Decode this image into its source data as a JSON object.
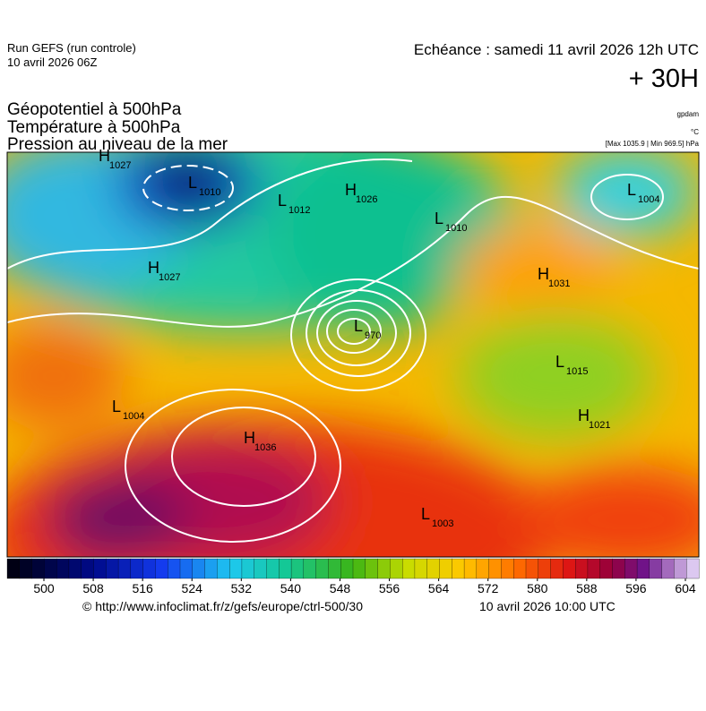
{
  "header": {
    "run": "Run GEFS (run controle)",
    "run_date": "10 avril 2026 06Z",
    "validity": "Echéance : samedi 11 avril 2026 12h UTC",
    "lead": "+ 30H",
    "titles": [
      "Géopotentiel à 500hPa",
      "Température à 500hPa",
      "Pression au niveau de la mer"
    ],
    "units": [
      "gpdam",
      "°C",
      "[Max 1035.9 | Min 969.5] hPa"
    ]
  },
  "centers": [
    {
      "kind": "H",
      "value": "1027"
    },
    {
      "kind": "L",
      "value": "1010"
    },
    {
      "kind": "L",
      "value": "1012"
    },
    {
      "kind": "H",
      "value": "1026"
    },
    {
      "kind": "L",
      "value": "1010"
    },
    {
      "kind": "L",
      "value": "1004"
    },
    {
      "kind": "H",
      "value": "1027"
    },
    {
      "kind": "H",
      "value": "1031"
    },
    {
      "kind": "L",
      "value": "970"
    },
    {
      "kind": "L",
      "value": "1015"
    },
    {
      "kind": "L",
      "value": "1004"
    },
    {
      "kind": "H",
      "value": "1036"
    },
    {
      "kind": "H",
      "value": "1021"
    },
    {
      "kind": "L",
      "value": "1003"
    }
  ],
  "colorbar": {
    "ticks": [
      500,
      508,
      516,
      524,
      532,
      540,
      548,
      556,
      564,
      572,
      580,
      588,
      596,
      604
    ]
  },
  "footer": {
    "source": "© http://www.infoclimat.fr/z/gefs/europe/ctrl-500/30",
    "issued": "10 avril 2026 10:00 UTC"
  }
}
